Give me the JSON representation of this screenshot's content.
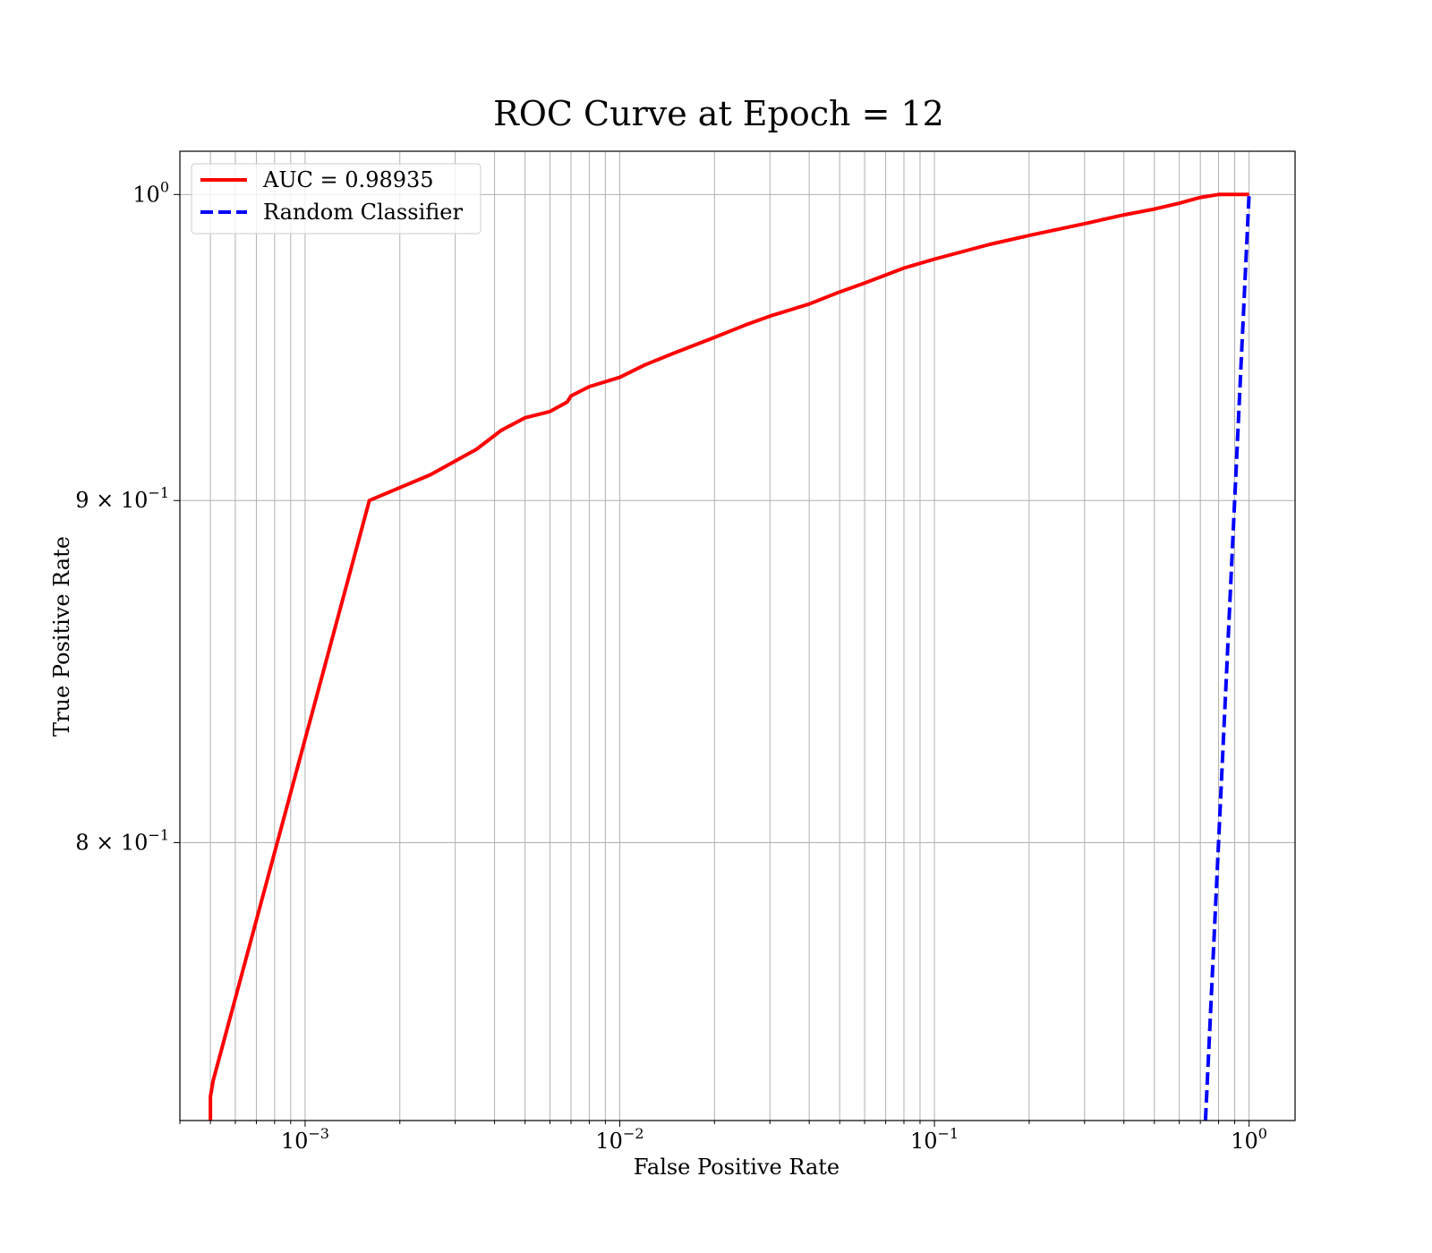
{
  "chart_data": {
    "type": "line",
    "title": "ROC Curve at Epoch = 12",
    "xlabel": "False Positive Rate",
    "ylabel": "True Positive Rate",
    "xscale": "log",
    "yscale": "log",
    "xlim": [
      0.0004,
      1.4
    ],
    "ylim": [
      0.727,
      1.015
    ],
    "grid": true,
    "grid_minor": true,
    "legend_position": "upper left",
    "x_ticks": [
      {
        "value": 0.001,
        "base": "10",
        "exp": "−3"
      },
      {
        "value": 0.01,
        "base": "10",
        "exp": "−2"
      },
      {
        "value": 0.1,
        "base": "10",
        "exp": "−1"
      },
      {
        "value": 1,
        "base": "10",
        "exp": "0"
      }
    ],
    "y_ticks": [
      {
        "value": 1.0,
        "mant": "",
        "base": "10",
        "exp": "0"
      },
      {
        "value": 0.9,
        "mant": "9 × ",
        "base": "10",
        "exp": "−1"
      },
      {
        "value": 0.8,
        "mant": "8 × ",
        "base": "10",
        "exp": "−1"
      }
    ],
    "series": [
      {
        "name": "AUC = 0.98935",
        "color": "#ff0000",
        "style": "solid",
        "x": [
          0.0005,
          0.0005,
          0.00051,
          0.0016,
          0.0025,
          0.0035,
          0.0042,
          0.005,
          0.006,
          0.0068,
          0.007,
          0.008,
          0.01,
          0.012,
          0.015,
          0.02,
          0.025,
          0.03,
          0.04,
          0.05,
          0.06,
          0.08,
          0.1,
          0.15,
          0.2,
          0.3,
          0.4,
          0.5,
          0.6,
          0.7,
          0.8,
          1.0
        ],
        "y": [
          0.727,
          0.733,
          0.737,
          0.9,
          0.908,
          0.916,
          0.922,
          0.926,
          0.928,
          0.931,
          0.933,
          0.936,
          0.939,
          0.943,
          0.947,
          0.952,
          0.956,
          0.959,
          0.963,
          0.967,
          0.97,
          0.975,
          0.978,
          0.983,
          0.986,
          0.99,
          0.993,
          0.995,
          0.997,
          0.999,
          1.0,
          1.0
        ]
      },
      {
        "name": "Random Classifier",
        "color": "#0000ff",
        "style": "dashed",
        "x": [
          0.727,
          1.0
        ],
        "y": [
          0.727,
          1.0
        ]
      }
    ]
  }
}
